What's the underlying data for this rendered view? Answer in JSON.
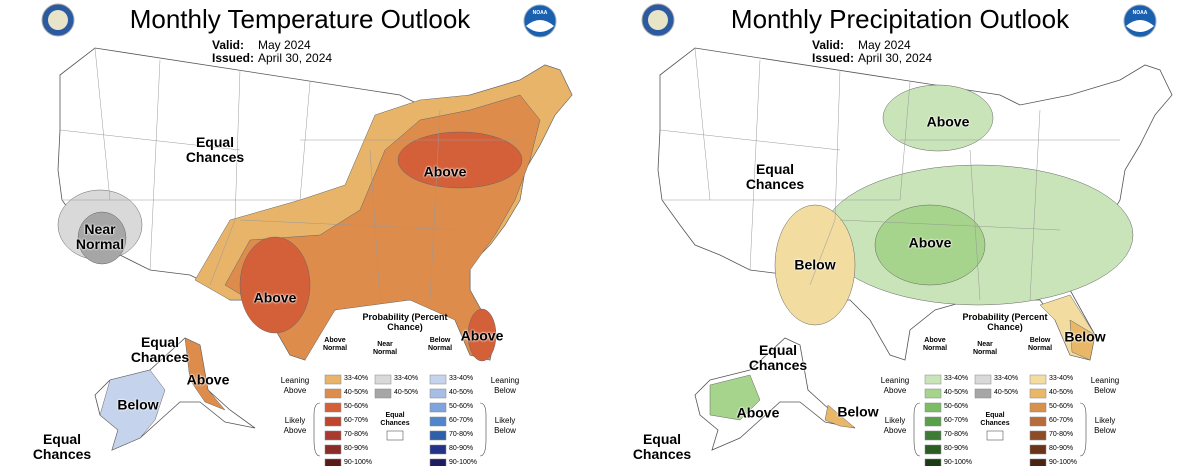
{
  "panels": [
    {
      "title": "Monthly Temperature Outlook",
      "valid_label": "Valid:",
      "valid_value": "May 2024",
      "issued_label": "Issued:",
      "issued_value": "April 30, 2024",
      "logo_text": "NOAA",
      "map_labels": [
        "Equal Chances",
        "Near Normal",
        "Above",
        "Above",
        "Above",
        "Equal Chances",
        "Above",
        "Below",
        "Equal Chances"
      ],
      "legend": {
        "title": "Probability (Percent Chance)",
        "leaning_above": "Leaning Above",
        "likely_above": "Likely Above",
        "equal_chances": "Equal Chances",
        "leaning_below": "Leaning Below",
        "likely_below": "Likely Below",
        "columns": [
          {
            "header": "Above Normal",
            "entries": [
              {
                "label": "33-40%",
                "color": "#e8b46a"
              },
              {
                "label": "40-50%",
                "color": "#dd8c4c"
              },
              {
                "label": "50-60%",
                "color": "#d4603a"
              },
              {
                "label": "60-70%",
                "color": "#c0452e"
              },
              {
                "label": "70-80%",
                "color": "#a83a30"
              },
              {
                "label": "80-90%",
                "color": "#8a2c28"
              },
              {
                "label": "90-100%",
                "color": "#5a1a18"
              }
            ]
          },
          {
            "header": "Near Normal",
            "entries": [
              {
                "label": "33-40%",
                "color": "#d9d9d9"
              },
              {
                "label": "40-50%",
                "color": "#a6a6a6"
              }
            ]
          },
          {
            "header": "Below Normal",
            "entries": [
              {
                "label": "33-40%",
                "color": "#c5d3ec"
              },
              {
                "label": "40-50%",
                "color": "#a6bde6"
              },
              {
                "label": "50-60%",
                "color": "#7fa3dc"
              },
              {
                "label": "60-70%",
                "color": "#4f86cc"
              },
              {
                "label": "70-80%",
                "color": "#2f5fa8"
              },
              {
                "label": "80-90%",
                "color": "#23338a"
              },
              {
                "label": "90-100%",
                "color": "#1c1c5e"
              }
            ]
          }
        ]
      }
    },
    {
      "title": "Monthly Precipitation Outlook",
      "valid_label": "Valid:",
      "valid_value": "May 2024",
      "issued_label": "Issued:",
      "issued_value": "April 30, 2024",
      "logo_text": "NOAA",
      "map_labels": [
        "Above",
        "Equal Chances",
        "Below",
        "Above",
        "Below",
        "Equal Chances",
        "Above",
        "Below",
        "Equal Chances"
      ],
      "legend": {
        "title": "Probability (Percent Chance)",
        "leaning_above": "Leaning Above",
        "likely_above": "Likely Above",
        "equal_chances": "Equal Chances",
        "leaning_below": "Leaning Below",
        "likely_below": "Likely Below",
        "columns": [
          {
            "header": "Above Normal",
            "entries": [
              {
                "label": "33-40%",
                "color": "#c8e4b8"
              },
              {
                "label": "40-50%",
                "color": "#a6d48c"
              },
              {
                "label": "50-60%",
                "color": "#7cbc64"
              },
              {
                "label": "60-70%",
                "color": "#5aa04a"
              },
              {
                "label": "70-80%",
                "color": "#3c7c34"
              },
              {
                "label": "80-90%",
                "color": "#2a5c24"
              },
              {
                "label": "90-100%",
                "color": "#1a3c14"
              }
            ]
          },
          {
            "header": "Near Normal",
            "entries": [
              {
                "label": "33-40%",
                "color": "#d9d9d9"
              },
              {
                "label": "40-50%",
                "color": "#a6a6a6"
              }
            ]
          },
          {
            "header": "Below Normal",
            "entries": [
              {
                "label": "33-40%",
                "color": "#f2dca0"
              },
              {
                "label": "40-50%",
                "color": "#e8b868"
              },
              {
                "label": "50-60%",
                "color": "#d8904a"
              },
              {
                "label": "60-70%",
                "color": "#b86c3a"
              },
              {
                "label": "70-80%",
                "color": "#8c4c28"
              },
              {
                "label": "80-90%",
                "color": "#6a3418"
              },
              {
                "label": "90-100%",
                "color": "#4a2410"
              }
            ]
          }
        ]
      }
    }
  ]
}
